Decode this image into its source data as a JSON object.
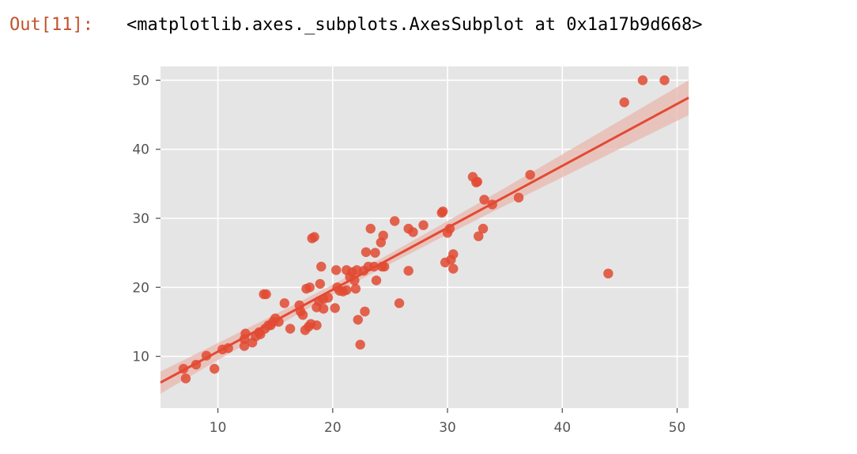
{
  "cell": {
    "prompt": "Out[11]:",
    "output_text": "<matplotlib.axes._subplots.AxesSubplot at 0x1a17b9d668>"
  },
  "colors": {
    "background": "#e5e5e5",
    "grid": "#ffffff",
    "point": "#e24a33",
    "line": "#e24a33",
    "band": "#e8b7ae",
    "prompt": "#c0532b"
  },
  "chart_data": {
    "type": "scatter",
    "style": "ggplot",
    "title": "",
    "xlabel": "",
    "ylabel": "",
    "xlim": [
      5,
      51
    ],
    "ylim": [
      2.5,
      52
    ],
    "xticks": [
      10,
      20,
      30,
      40,
      50
    ],
    "yticks": [
      10,
      20,
      30,
      40,
      50
    ],
    "grid": true,
    "points": [
      [
        7.0,
        8.2
      ],
      [
        7.2,
        6.8
      ],
      [
        8.1,
        8.8
      ],
      [
        9.0,
        10.1
      ],
      [
        9.7,
        8.2
      ],
      [
        10.4,
        11.0
      ],
      [
        10.9,
        11.2
      ],
      [
        12.3,
        11.5
      ],
      [
        12.3,
        12.5
      ],
      [
        12.4,
        13.3
      ],
      [
        13.0,
        12.0
      ],
      [
        13.3,
        12.9
      ],
      [
        13.6,
        13.5
      ],
      [
        13.7,
        13.2
      ],
      [
        14.0,
        19.0
      ],
      [
        14.1,
        14.0
      ],
      [
        14.2,
        19.0
      ],
      [
        14.4,
        14.5
      ],
      [
        14.6,
        14.5
      ],
      [
        14.8,
        15.0
      ],
      [
        15.0,
        15.5
      ],
      [
        15.3,
        15.0
      ],
      [
        15.8,
        17.7
      ],
      [
        16.3,
        14.0
      ],
      [
        17.1,
        17.4
      ],
      [
        17.2,
        16.5
      ],
      [
        17.4,
        16.0
      ],
      [
        17.6,
        13.8
      ],
      [
        17.7,
        19.8
      ],
      [
        17.9,
        14.3
      ],
      [
        18.0,
        20.0
      ],
      [
        18.1,
        14.7
      ],
      [
        18.2,
        27.1
      ],
      [
        18.4,
        27.3
      ],
      [
        18.6,
        14.5
      ],
      [
        18.6,
        17.1
      ],
      [
        18.8,
        18.0
      ],
      [
        18.9,
        20.5
      ],
      [
        19.0,
        23.0
      ],
      [
        19.2,
        16.9
      ],
      [
        19.2,
        18.3
      ],
      [
        19.6,
        18.5
      ],
      [
        20.2,
        17.0
      ],
      [
        20.3,
        22.5
      ],
      [
        20.4,
        20.0
      ],
      [
        20.6,
        19.5
      ],
      [
        20.9,
        19.4
      ],
      [
        21.2,
        19.6
      ],
      [
        21.2,
        22.5
      ],
      [
        21.5,
        21.5
      ],
      [
        21.7,
        22.2
      ],
      [
        21.9,
        21.0
      ],
      [
        22.0,
        19.8
      ],
      [
        22.1,
        22.5
      ],
      [
        22.2,
        15.3
      ],
      [
        22.4,
        11.7
      ],
      [
        22.7,
        22.4
      ],
      [
        22.8,
        16.5
      ],
      [
        22.9,
        25.1
      ],
      [
        23.1,
        23.0
      ],
      [
        23.3,
        28.5
      ],
      [
        23.6,
        23.0
      ],
      [
        23.7,
        25.0
      ],
      [
        23.8,
        21.0
      ],
      [
        24.2,
        26.5
      ],
      [
        24.3,
        23.0
      ],
      [
        24.4,
        27.5
      ],
      [
        24.5,
        23.0
      ],
      [
        25.4,
        29.6
      ],
      [
        25.8,
        17.7
      ],
      [
        26.6,
        28.5
      ],
      [
        26.6,
        22.4
      ],
      [
        27.0,
        28.0
      ],
      [
        27.9,
        29.0
      ],
      [
        29.5,
        30.8
      ],
      [
        29.6,
        31.0
      ],
      [
        29.8,
        23.6
      ],
      [
        30.0,
        27.9
      ],
      [
        30.2,
        28.5
      ],
      [
        30.3,
        24.0
      ],
      [
        30.5,
        24.8
      ],
      [
        30.5,
        22.7
      ],
      [
        32.2,
        36.0
      ],
      [
        32.5,
        35.2
      ],
      [
        32.6,
        35.3
      ],
      [
        32.7,
        27.4
      ],
      [
        33.1,
        28.5
      ],
      [
        33.2,
        32.7
      ],
      [
        33.9,
        32.0
      ],
      [
        36.2,
        33.0
      ],
      [
        37.2,
        36.3
      ],
      [
        44.0,
        22.0
      ],
      [
        45.4,
        46.8
      ],
      [
        47.0,
        50.0
      ],
      [
        48.9,
        50.0
      ]
    ],
    "regression": {
      "intercept": 1.72,
      "slope": 0.897
    }
  }
}
